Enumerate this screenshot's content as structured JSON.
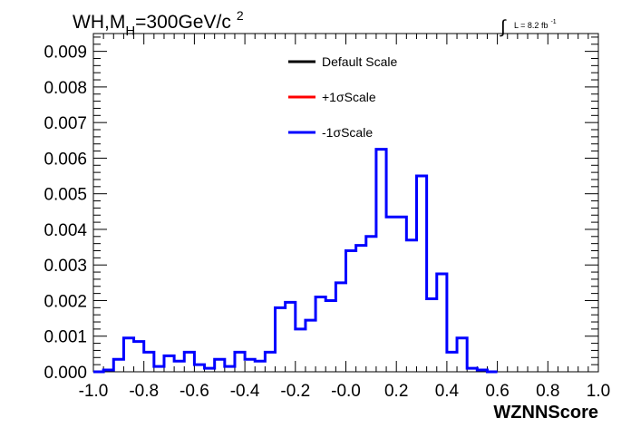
{
  "chart_data": {
    "type": "histogram",
    "title_main": "WH,M",
    "title_sub": "H",
    "title_rest": "=300GeV/c",
    "title_sup": "2",
    "lumi_prefix": "∫",
    "lumi_text": "L = 8.2 fb",
    "lumi_sup": "-1",
    "xlabel": "WZNNScore",
    "xlim": [
      -1.0,
      1.0
    ],
    "ylim": [
      0.0,
      0.0095
    ],
    "x_ticks": [
      "-1.0",
      "-0.8",
      "-0.6",
      "-0.4",
      "-0.2",
      "-0.0",
      "0.2",
      "0.4",
      "0.6",
      "0.8",
      "1.0"
    ],
    "y_ticks": [
      "0.000",
      "0.001",
      "0.002",
      "0.003",
      "0.004",
      "0.005",
      "0.006",
      "0.007",
      "0.008",
      "0.009"
    ],
    "bin_edges_start": -1.0,
    "bin_width": 0.04,
    "legend": [
      {
        "label": "Default Scale",
        "color": "#000000"
      },
      {
        "label": "+1σScale",
        "color": "#ff0000"
      },
      {
        "label": "-1σScale",
        "color": "#0000ff"
      }
    ],
    "series": [
      {
        "name": "-1σScale",
        "color": "#0000ff",
        "values": [
          0.0,
          5e-05,
          0.00035,
          0.00095,
          0.00085,
          0.00055,
          0.00015,
          0.00045,
          0.0003,
          0.00055,
          0.0002,
          0.0001,
          0.00035,
          0.00015,
          0.00055,
          0.00035,
          0.0003,
          0.00055,
          0.0018,
          0.00195,
          0.0012,
          0.00145,
          0.0021,
          0.002,
          0.0025,
          0.0034,
          0.00355,
          0.0038,
          0.00625,
          0.00435,
          0.00435,
          0.0037,
          0.0055,
          0.00205,
          0.00275,
          0.00055,
          0.00095,
          0.0001,
          5e-05,
          0.0
        ]
      }
    ]
  }
}
